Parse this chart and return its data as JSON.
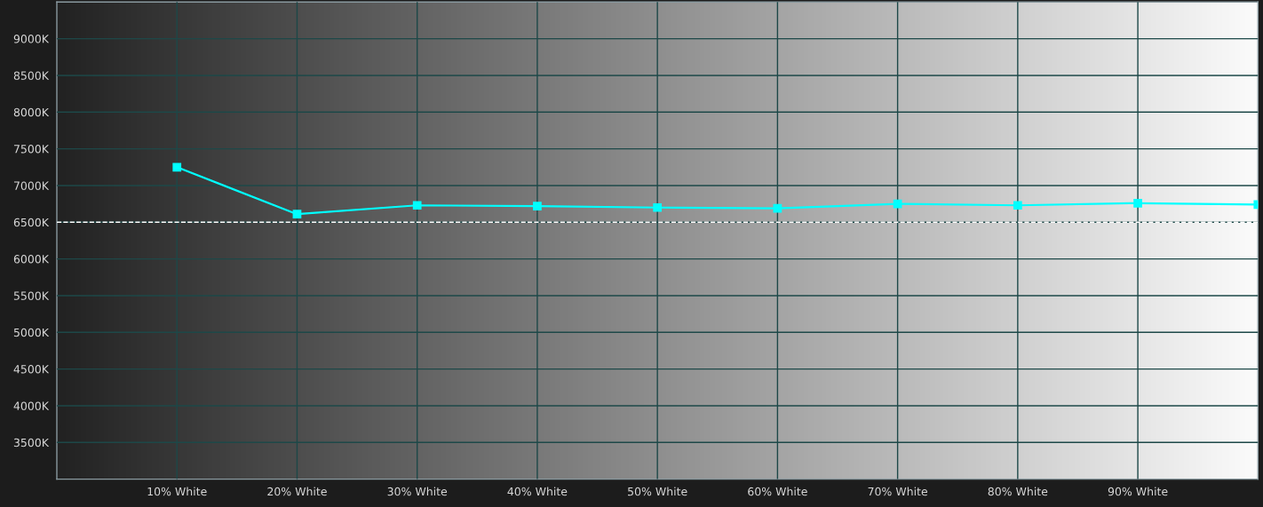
{
  "chart_data": {
    "type": "line",
    "x": [
      10,
      20,
      30,
      40,
      50,
      60,
      70,
      80,
      90,
      100
    ],
    "series": [
      {
        "color": "#00ffff",
        "values": [
          7250,
          6610,
          6730,
          6720,
          6700,
          6690,
          6750,
          6730,
          6760,
          6740
        ]
      }
    ],
    "xlim": [
      0,
      100
    ],
    "xticks": [
      {
        "value": 10,
        "label": "10% White"
      },
      {
        "value": 20,
        "label": "20% White"
      },
      {
        "value": 30,
        "label": "30% White"
      },
      {
        "value": 40,
        "label": "40% White"
      },
      {
        "value": 50,
        "label": "50% White"
      },
      {
        "value": 60,
        "label": "60% White"
      },
      {
        "value": 70,
        "label": "70% White"
      },
      {
        "value": 80,
        "label": "80% White"
      },
      {
        "value": 90,
        "label": "90% White"
      }
    ],
    "ylim": [
      3000,
      9500
    ],
    "yticks": [
      {
        "value": 3500,
        "label": "3500K"
      },
      {
        "value": 4000,
        "label": "4000K"
      },
      {
        "value": 4500,
        "label": "4500K"
      },
      {
        "value": 5000,
        "label": "5000K"
      },
      {
        "value": 5500,
        "label": "5500K"
      },
      {
        "value": 6000,
        "label": "6000K"
      },
      {
        "value": 6500,
        "label": "6500K"
      },
      {
        "value": 7000,
        "label": "7000K"
      },
      {
        "value": 7500,
        "label": "7500K"
      },
      {
        "value": 8000,
        "label": "8000K"
      },
      {
        "value": 8500,
        "label": "8500K"
      },
      {
        "value": 9000,
        "label": "9000K"
      }
    ],
    "grid": true,
    "marker": "square",
    "line_style": "solid",
    "ref_lines": [
      {
        "axis": "y",
        "value": 6500,
        "color": "#ffffff",
        "line_style": "dashed"
      }
    ]
  }
}
